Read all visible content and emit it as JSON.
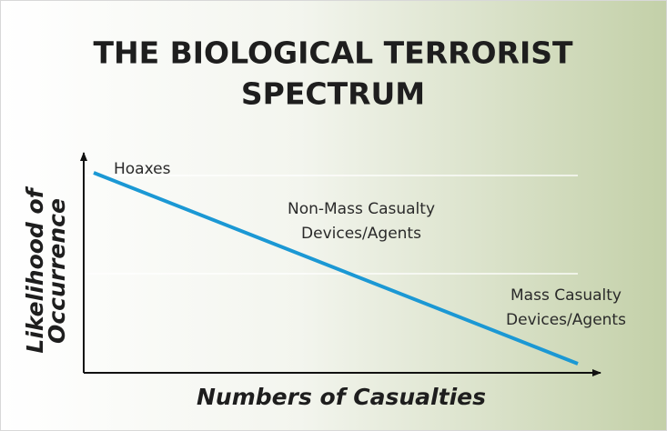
{
  "title_lines": [
    "THE BIOLOGICAL TERRORIST",
    "SPECTRUM"
  ],
  "y_axis_label_lines": [
    "Likelihood of",
    "Occurrence"
  ],
  "x_axis_label": "Numbers of Casualties",
  "regions": [
    {
      "lines": [
        "Hoaxes"
      ]
    },
    {
      "lines": [
        "Non-Mass Casualty",
        "Devices/Agents"
      ]
    },
    {
      "lines": [
        "Mass Casualty",
        "Devices/Agents"
      ]
    }
  ]
}
